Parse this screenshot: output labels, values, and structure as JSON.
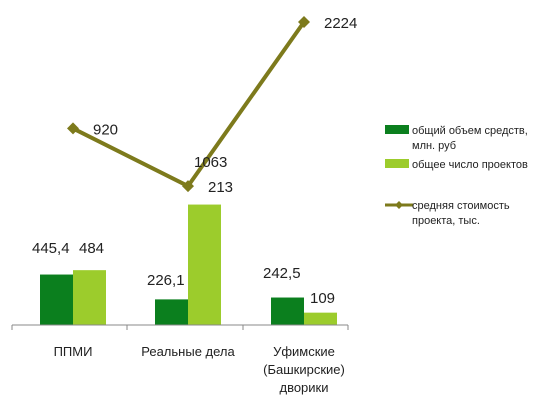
{
  "chart_data": {
    "type": "bar",
    "categories": [
      [
        "ППМИ"
      ],
      [
        "Реальные дела"
      ],
      [
        "Уфимские",
        "(Башкирские)",
        "дворики"
      ]
    ],
    "series": [
      {
        "name": [
          "общий объем средств,",
          "млн. руб"
        ],
        "kind": "bar",
        "color": "#0b7f1e",
        "values": [
          445.4,
          226.1,
          242.5
        ],
        "labels": [
          "445,4",
          "226,1",
          "242,5"
        ]
      },
      {
        "name": [
          "общее число проектов"
        ],
        "kind": "bar",
        "color": "#9ccc2c",
        "values": [
          484,
          1063,
          109
        ],
        "labels": [
          "484",
          "1063",
          "109"
        ]
      },
      {
        "name": [
          "средняя стоимость",
          "проекта, тыс."
        ],
        "kind": "line",
        "color": "#7d7a1c",
        "values": [
          920,
          213,
          2224
        ],
        "labels": [
          "920",
          "213",
          "2224"
        ]
      }
    ],
    "legend_position": "right",
    "grid": false
  }
}
